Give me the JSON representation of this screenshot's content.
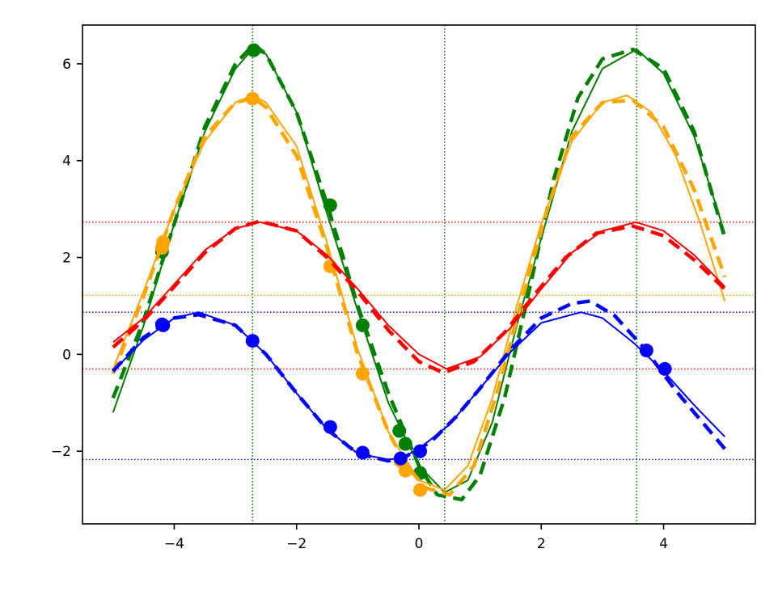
{
  "chart_data": {
    "type": "line",
    "title": "",
    "xlabel": "",
    "ylabel": "",
    "xlim": [
      -5.5,
      5.5
    ],
    "ylim": [
      -3.5,
      6.8
    ],
    "grid": false,
    "x_ticks": [
      -4,
      -2,
      0,
      2,
      4
    ],
    "x_tick_labels": [
      "−4",
      "−2",
      "0",
      "2",
      "4"
    ],
    "y_ticks": [
      -2,
      0,
      2,
      4,
      6
    ],
    "y_tick_labels": [
      "−2",
      "0",
      "2",
      "4",
      "6"
    ],
    "reference_lines": {
      "vertical": [
        {
          "x": -2.72,
          "color": "#008000"
        },
        {
          "x": 0.42,
          "color": "#008000"
        },
        {
          "x": 3.56,
          "color": "#008000"
        }
      ],
      "horizontal": [
        {
          "y": 2.73,
          "color": "#ff0000"
        },
        {
          "y": -0.3,
          "color": "#ff0000"
        },
        {
          "y": 1.22,
          "color": "#ffa500"
        },
        {
          "y": 0.87,
          "color": "#0000ff"
        },
        {
          "y": -2.17,
          "color": "#0000ff"
        }
      ]
    },
    "series": [
      {
        "color": "#008000",
        "fit_curve": {
          "x": [
            -5.0,
            -4.5,
            -4.0,
            -3.5,
            -3.0,
            -2.72,
            -2.5,
            -2.0,
            -1.5,
            -1.0,
            -0.5,
            0.0,
            0.42,
            0.8,
            1.2,
            1.6,
            2.0,
            2.5,
            3.0,
            3.56,
            4.0,
            4.5,
            5.0
          ],
          "y": [
            -1.2,
            0.6,
            2.7,
            4.6,
            5.9,
            6.3,
            6.2,
            5.0,
            2.9,
            0.9,
            -1.0,
            -2.3,
            -2.85,
            -2.6,
            -1.4,
            0.6,
            2.4,
            4.6,
            5.9,
            6.3,
            5.8,
            4.5,
            2.5
          ]
        },
        "dashed": {
          "x": [
            -5.0,
            -4.5,
            -4.0,
            -3.5,
            -3.0,
            -2.7,
            -2.5,
            -2.0,
            -1.5,
            -1.0,
            -0.5,
            0.0,
            0.3,
            0.7,
            1.0,
            1.4,
            1.8,
            2.2,
            2.6,
            3.0,
            3.5,
            4.0,
            4.5,
            5.0
          ],
          "y": [
            -0.9,
            0.7,
            2.7,
            4.7,
            6.0,
            6.4,
            6.2,
            5.0,
            3.1,
            1.0,
            -0.8,
            -2.3,
            -2.9,
            -3.0,
            -2.5,
            -0.9,
            1.3,
            3.6,
            5.3,
            6.1,
            6.3,
            5.9,
            4.6,
            2.4
          ]
        },
        "points": {
          "x": [
            -4.2,
            -2.7,
            -1.45,
            -0.92,
            -0.32,
            -0.22,
            0.02
          ],
          "y": [
            2.12,
            6.28,
            3.08,
            0.6,
            -1.58,
            -1.85,
            -2.45
          ]
        }
      },
      {
        "color": "#ffa500",
        "fit_curve": {
          "x": [
            -5.0,
            -4.5,
            -4.0,
            -3.5,
            -3.0,
            -2.72,
            -2.5,
            -2.0,
            -1.5,
            -1.0,
            -0.5,
            0.0,
            0.42,
            0.8,
            1.2,
            1.6,
            2.0,
            2.5,
            3.0,
            3.4,
            3.8,
            4.2,
            4.6,
            5.0
          ],
          "y": [
            -0.3,
            1.3,
            3.0,
            4.4,
            5.2,
            5.35,
            5.2,
            4.3,
            2.3,
            0.1,
            -1.6,
            -2.6,
            -2.8,
            -2.3,
            -0.9,
            1.0,
            2.7,
            4.4,
            5.2,
            5.35,
            5.0,
            4.1,
            2.7,
            1.1
          ]
        },
        "dashed": {
          "x": [
            -5.0,
            -4.5,
            -4.0,
            -3.5,
            -3.0,
            -2.7,
            -2.5,
            -2.0,
            -1.5,
            -1.0,
            -0.5,
            -0.2,
            0.1,
            0.5,
            0.9,
            1.3,
            1.7,
            2.1,
            2.5,
            3.0,
            3.5,
            4.0,
            4.5,
            5.0
          ],
          "y": [
            -0.4,
            1.2,
            3.0,
            4.5,
            5.2,
            5.3,
            5.1,
            4.1,
            2.2,
            0.0,
            -1.6,
            -2.3,
            -2.75,
            -2.9,
            -2.3,
            -0.7,
            1.2,
            3.0,
            4.5,
            5.2,
            5.25,
            4.7,
            3.4,
            1.6
          ]
        },
        "points": {
          "x": [
            -4.2,
            -4.18,
            -2.72,
            -1.45,
            -0.92,
            -0.3,
            -0.22,
            0.02
          ],
          "y": [
            2.2,
            2.32,
            5.28,
            1.82,
            -0.4,
            -2.2,
            -2.4,
            -2.8
          ]
        }
      },
      {
        "color": "#ff0000",
        "fit_curve": {
          "x": [
            -5.0,
            -4.5,
            -4.0,
            -3.5,
            -3.0,
            -2.6,
            -2.0,
            -1.5,
            -1.0,
            -0.5,
            0.0,
            0.45,
            1.0,
            1.5,
            2.0,
            2.5,
            3.0,
            3.55,
            4.0,
            4.5,
            5.0
          ],
          "y": [
            0.25,
            0.75,
            1.45,
            2.15,
            2.6,
            2.73,
            2.55,
            2.05,
            1.35,
            0.6,
            0.0,
            -0.3,
            -0.05,
            0.55,
            1.35,
            2.1,
            2.55,
            2.73,
            2.55,
            2.05,
            1.4
          ]
        },
        "dashed": {
          "x": [
            -5.0,
            -4.5,
            -4.0,
            -3.5,
            -3.0,
            -2.6,
            -2.0,
            -1.5,
            -1.0,
            -0.5,
            0.0,
            0.4,
            0.9,
            1.4,
            1.9,
            2.4,
            2.9,
            3.5,
            4.0,
            4.5,
            5.0
          ],
          "y": [
            0.15,
            0.7,
            1.4,
            2.1,
            2.6,
            2.75,
            2.55,
            2.0,
            1.3,
            0.5,
            -0.15,
            -0.38,
            -0.15,
            0.45,
            1.25,
            2.0,
            2.5,
            2.65,
            2.45,
            1.95,
            1.35
          ]
        },
        "points": {
          "x": [],
          "y": []
        }
      },
      {
        "color": "#0000ff",
        "fit_curve": {
          "x": [
            -5.0,
            -4.5,
            -4.0,
            -3.6,
            -3.0,
            -2.5,
            -2.0,
            -1.5,
            -1.0,
            -0.5,
            -0.3,
            0.0,
            0.5,
            1.0,
            1.5,
            2.0,
            2.65,
            3.0,
            3.5,
            4.0,
            4.5,
            5.0
          ],
          "y": [
            -0.35,
            0.3,
            0.75,
            0.87,
            0.6,
            0.0,
            -0.8,
            -1.55,
            -2.05,
            -2.17,
            -2.15,
            -1.95,
            -1.45,
            -0.7,
            0.05,
            0.65,
            0.87,
            0.75,
            0.25,
            -0.35,
            -1.05,
            -1.7
          ]
        },
        "dashed": {
          "x": [
            -5.0,
            -4.5,
            -4.0,
            -3.6,
            -3.0,
            -2.5,
            -2.0,
            -1.5,
            -1.0,
            -0.5,
            -0.2,
            0.2,
            0.6,
            1.0,
            1.5,
            2.0,
            2.5,
            2.8,
            3.2,
            3.7,
            4.2,
            4.6,
            5.0
          ],
          "y": [
            -0.35,
            0.35,
            0.75,
            0.82,
            0.6,
            0.0,
            -0.8,
            -1.55,
            -2.05,
            -2.2,
            -2.1,
            -1.8,
            -1.3,
            -0.7,
            0.1,
            0.75,
            1.05,
            1.1,
            0.8,
            0.1,
            -0.75,
            -1.35,
            -1.95
          ]
        },
        "points": {
          "x": [
            -4.2,
            -4.18,
            -2.72,
            -1.45,
            -0.92,
            -0.3,
            0.02,
            3.72,
            4.02
          ],
          "y": [
            0.62,
            0.6,
            0.28,
            -1.5,
            -2.03,
            -2.15,
            -2.0,
            0.08,
            -0.3
          ]
        }
      }
    ]
  }
}
